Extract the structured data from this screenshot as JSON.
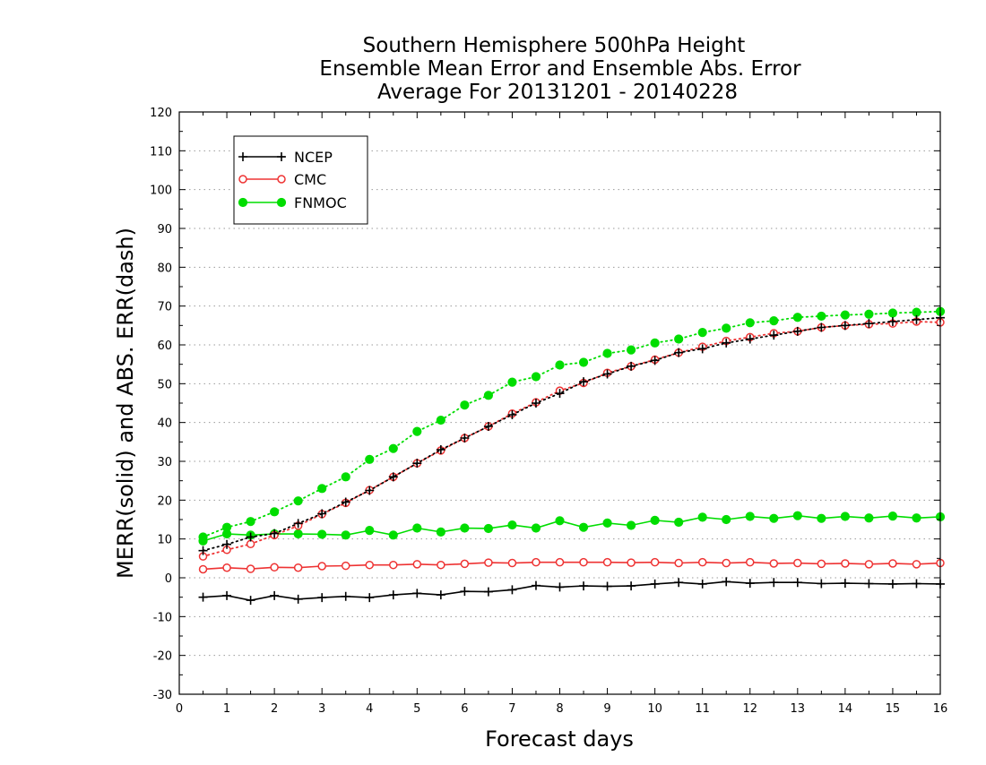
{
  "chart_data": {
    "type": "line",
    "title": [
      "Southern Hemisphere 500hPa Height",
      "Ensemble Mean Error and Ensemble Abs. Error",
      "Average For 20131201 - 20140228"
    ],
    "xlabel": "Forecast days",
    "ylabel": "MERR(solid) and ABS. ERR(dash)",
    "xlim": [
      0,
      16
    ],
    "ylim": [
      -30,
      120
    ],
    "xticks": [
      "0",
      "1",
      "2",
      "3",
      "4",
      "5",
      "6",
      "7",
      "8",
      "9",
      "10",
      "11",
      "12",
      "13",
      "14",
      "15",
      "16"
    ],
    "yticks": [
      "-30",
      "-20",
      "-10",
      "0",
      "10",
      "20",
      "30",
      "40",
      "50",
      "60",
      "70",
      "80",
      "90",
      "100",
      "110",
      "120"
    ],
    "grid": "horizontal dotted",
    "legend_position": "top-left",
    "x": [
      0.5,
      1,
      1.5,
      2,
      2.5,
      3,
      3.5,
      4,
      4.5,
      5,
      5.5,
      6,
      6.5,
      7,
      7.5,
      8,
      8.5,
      9,
      9.5,
      10,
      10.5,
      11,
      11.5,
      12,
      12.5,
      13,
      13.5,
      14,
      14.5,
      15,
      15.5,
      16
    ],
    "series": [
      {
        "name": "NCEP",
        "color": "#000000",
        "marker": "plus",
        "merr": [
          -5,
          -4.6,
          -5.8,
          -4.6,
          -5.5,
          -5.1,
          -4.8,
          -5.1,
          -4.4,
          -4,
          -4.4,
          -3.5,
          -3.6,
          -3.1,
          -2,
          -2.4,
          -2.1,
          -2.2,
          -2.1,
          -1.6,
          -1.2,
          -1.6,
          -1,
          -1.4,
          -1.2,
          -1.2,
          -1.5,
          -1.4,
          -1.5,
          -1.6,
          -1.5,
          -1.6
        ],
        "abserr": [
          7,
          8.6,
          10.5,
          11.4,
          14,
          16.5,
          19.5,
          22.5,
          26,
          29.5,
          33,
          36,
          39,
          42,
          45,
          47.5,
          50.5,
          52.5,
          54.5,
          56,
          58,
          59,
          60.5,
          61.5,
          62.5,
          63.5,
          64.5,
          65,
          65.5,
          66,
          66.5,
          67
        ]
      },
      {
        "name": "CMC",
        "color": "#ee3333",
        "marker": "open-circle",
        "merr": [
          2.2,
          2.6,
          2.3,
          2.7,
          2.6,
          3,
          3.1,
          3.3,
          3.3,
          3.5,
          3.3,
          3.6,
          3.9,
          3.8,
          4,
          4,
          4,
          4,
          3.9,
          4,
          3.8,
          4,
          3.8,
          4,
          3.7,
          3.8,
          3.6,
          3.7,
          3.5,
          3.7,
          3.5,
          3.8
        ],
        "abserr": [
          5.5,
          7.2,
          8.7,
          11,
          13.4,
          16.4,
          19.3,
          22.6,
          26,
          29.5,
          32.8,
          36,
          39,
          42.3,
          45.2,
          48.2,
          50.2,
          52.8,
          54.5,
          56.2,
          58,
          59.5,
          61,
          62,
          63,
          63.5,
          64.5,
          65,
          65.3,
          65.5,
          66,
          65.8
        ]
      },
      {
        "name": "FNMOC",
        "color": "#00dd00",
        "marker": "filled-circle",
        "merr": [
          9.5,
          11.3,
          11,
          11.3,
          11.3,
          11.2,
          11,
          12.2,
          11,
          12.8,
          11.8,
          12.8,
          12.7,
          13.6,
          12.8,
          14.7,
          13,
          14.1,
          13.5,
          14.8,
          14.3,
          15.6,
          15,
          15.8,
          15.3,
          16,
          15.3,
          15.8,
          15.4,
          15.9,
          15.4,
          15.7
        ],
        "abserr": [
          10.5,
          13,
          14.5,
          17,
          19.8,
          23,
          26,
          30.5,
          33.3,
          37.7,
          40.6,
          44.5,
          47,
          50.4,
          51.8,
          54.8,
          55.5,
          57.8,
          58.7,
          60.5,
          61.5,
          63.2,
          64.3,
          65.7,
          66.2,
          67.1,
          67.4,
          67.7,
          67.9,
          68.2,
          68.4,
          68.6
        ]
      }
    ]
  }
}
